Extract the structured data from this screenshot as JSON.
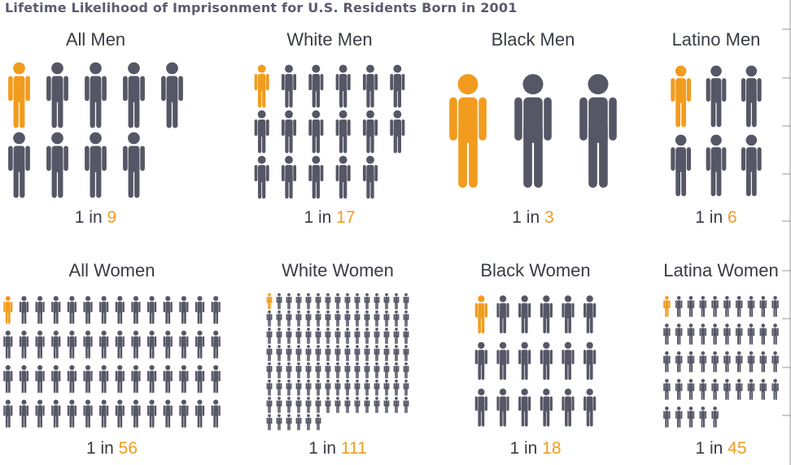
{
  "title": "Lifetime Likelihood of Imprisonment for U.S. Residents Born in 2001",
  "colors": {
    "highlight": "#f29c1f",
    "other": "#565766",
    "text": "#3a3c44",
    "title": "#5a5c6d"
  },
  "icon": "person-icon",
  "chart_data": {
    "type": "pictograph",
    "title": "Lifetime Likelihood of Imprisonment for U.S. Residents Born in 2001",
    "groups": [
      {
        "label": "All Men",
        "prefix": "1 in",
        "value": 9
      },
      {
        "label": "White Men",
        "prefix": "1 in",
        "value": 17
      },
      {
        "label": "Black Men",
        "prefix": "1 in",
        "value": 3
      },
      {
        "label": "Latino Men",
        "prefix": "1 in",
        "value": 6
      },
      {
        "label": "All Women",
        "prefix": "1 in",
        "value": 56
      },
      {
        "label": "White Women",
        "prefix": "1 in",
        "value": 111
      },
      {
        "label": "Black Women",
        "prefix": "1 in",
        "value": 18
      },
      {
        "label": "Latina Women",
        "prefix": "1 in",
        "value": 45
      }
    ]
  }
}
